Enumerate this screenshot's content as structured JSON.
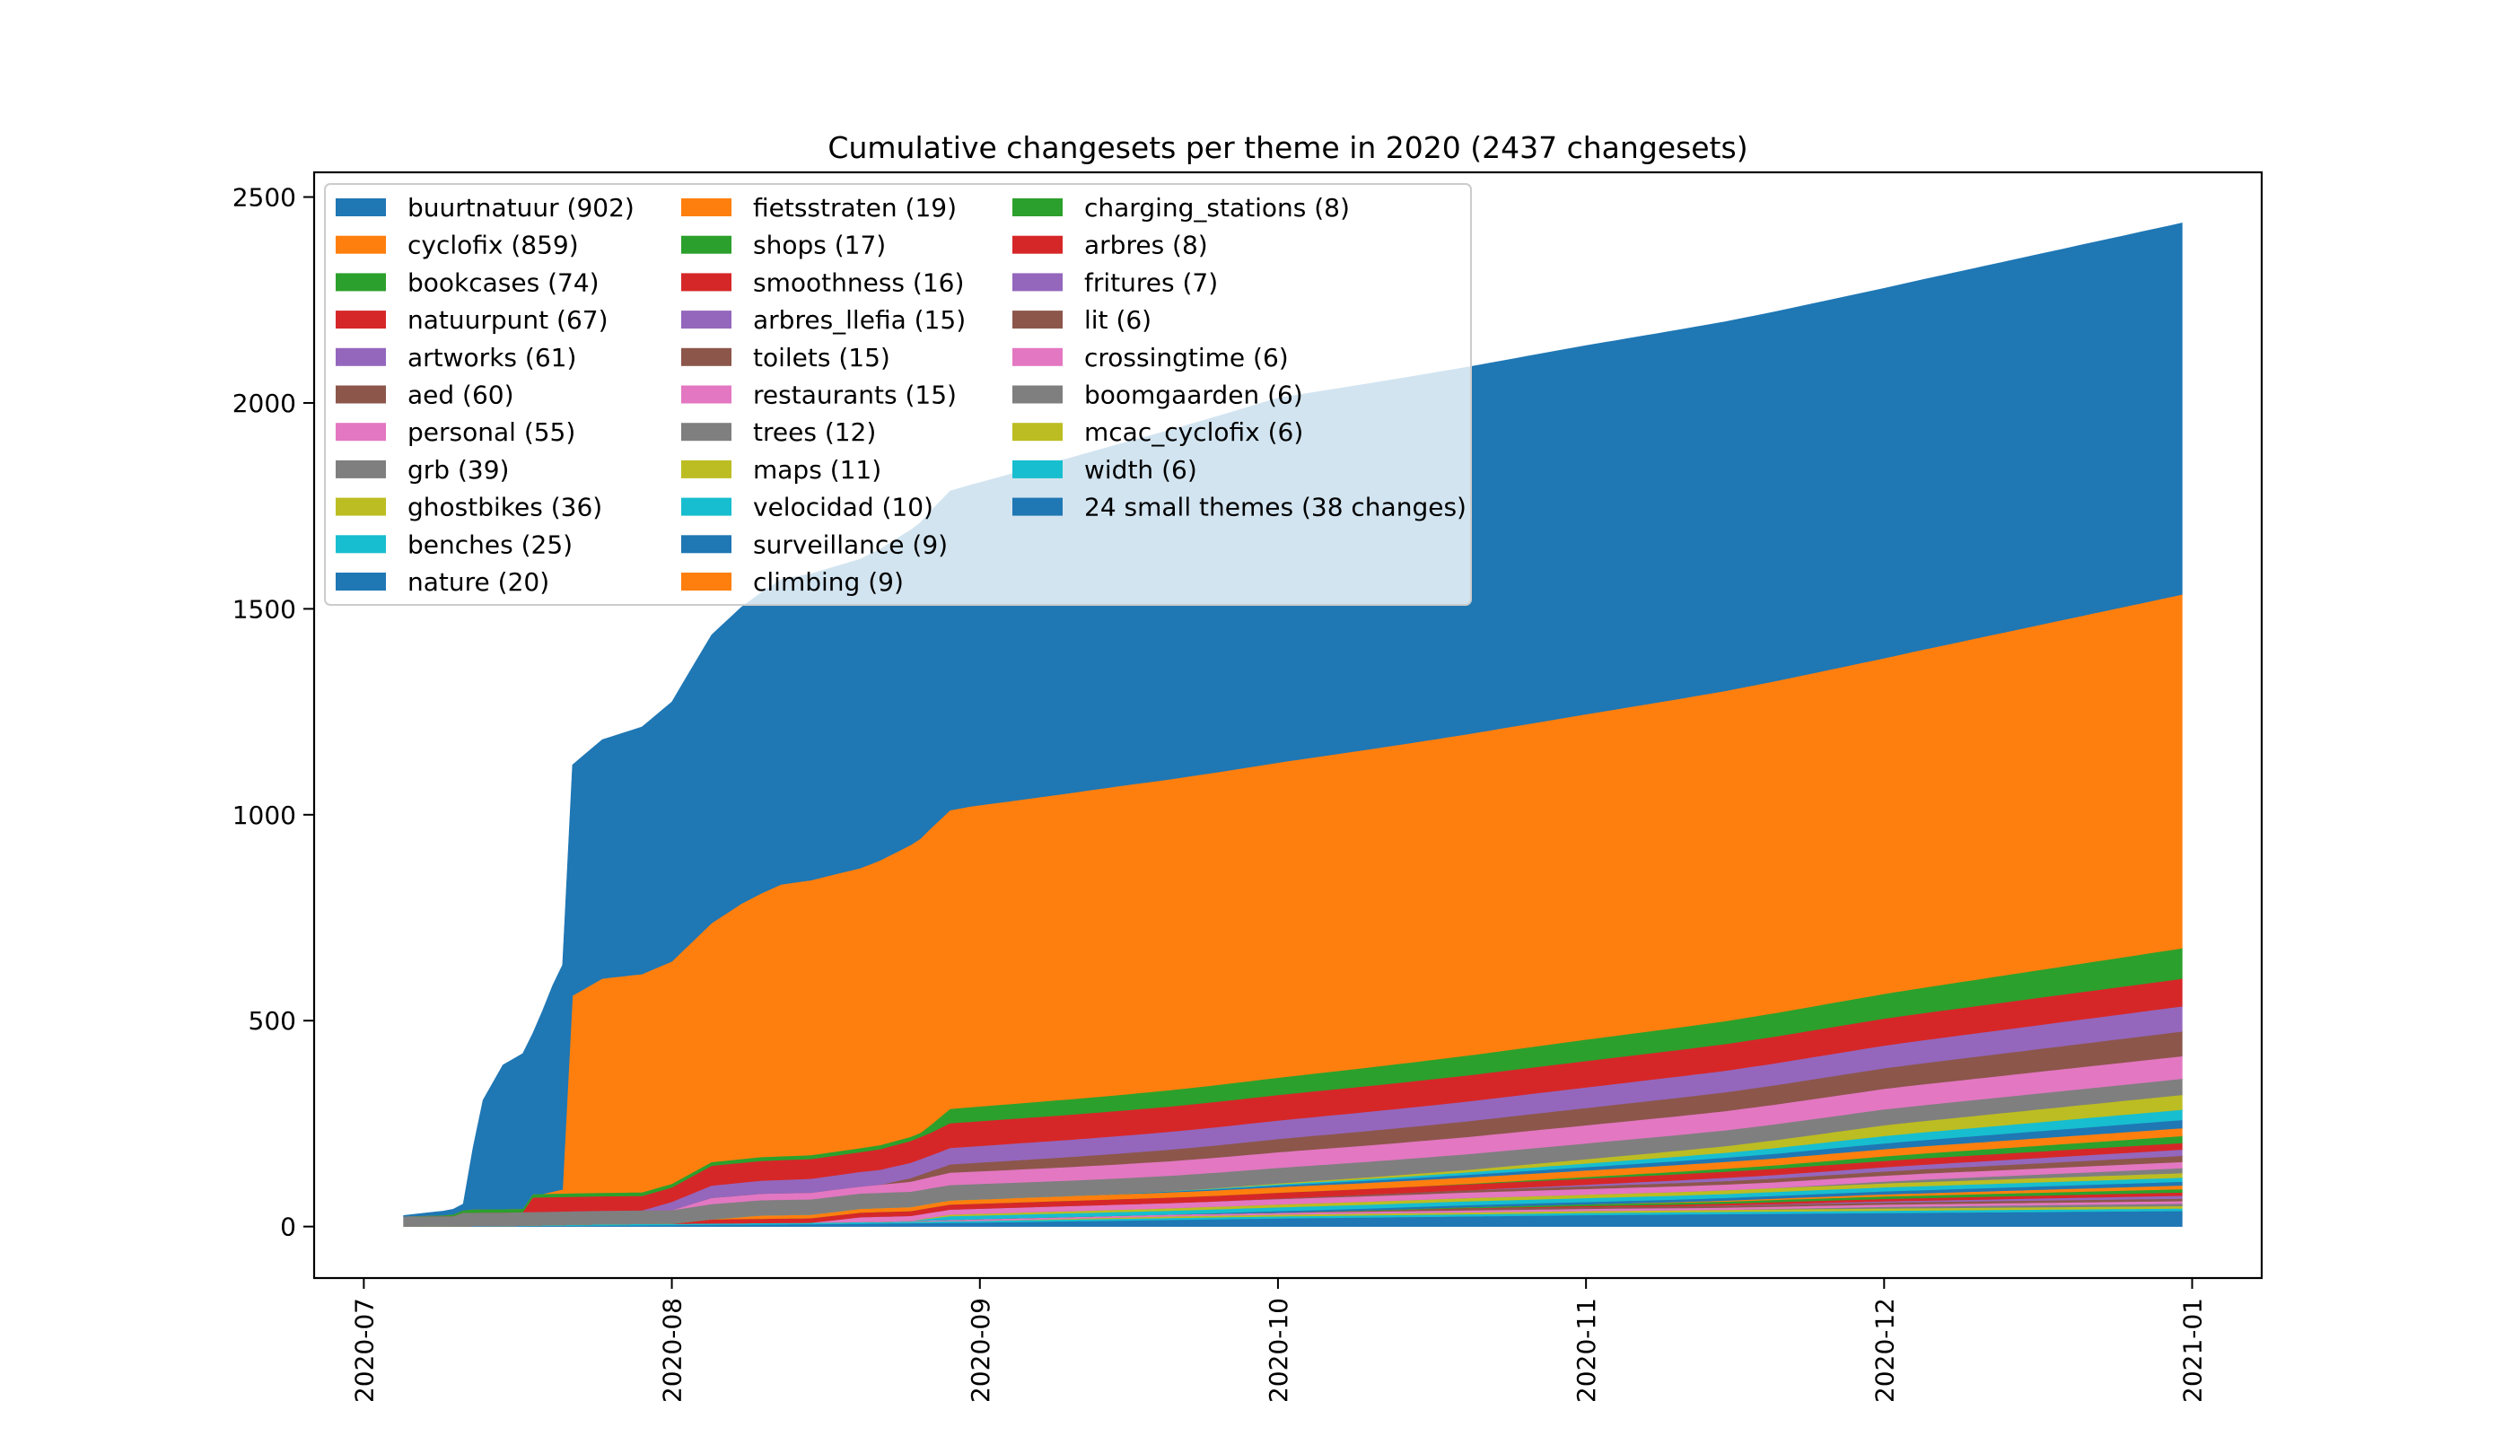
{
  "chart_data": {
    "type": "area",
    "stacked": true,
    "title": "Cumulative changesets per theme in 2020 (2437 changesets)",
    "xlabel": "",
    "ylabel": "",
    "x_range": [
      "2020-06-26",
      "2021-01-08"
    ],
    "ylim": [
      -125,
      2560
    ],
    "x_ticks": [
      "2020-07",
      "2020-08",
      "2020-09",
      "2020-10",
      "2020-11",
      "2020-12",
      "2021-01"
    ],
    "x_tick_dates": [
      "2020-07-01",
      "2020-08-01",
      "2020-09-01",
      "2020-10-01",
      "2020-11-01",
      "2020-12-01",
      "2021-01-01"
    ],
    "y_ticks": [
      0,
      500,
      1000,
      1500,
      2000,
      2500
    ],
    "grid": false,
    "legend_position": "top-left",
    "legend_columns": 3,
    "stack_order_note": "first series drawn on top; last series at the bottom",
    "series": [
      {
        "name": "buurtnatuur (902)",
        "color": "#1f77b4",
        "points": [
          [
            "2020-07-05",
            2
          ],
          [
            "2020-07-09",
            10
          ],
          [
            "2020-07-11",
            15
          ],
          [
            "2020-07-12",
            150
          ],
          [
            "2020-07-13",
            265
          ],
          [
            "2020-07-15",
            350
          ],
          [
            "2020-07-18",
            390
          ],
          [
            "2020-07-20",
            500
          ],
          [
            "2020-07-21",
            545
          ],
          [
            "2020-07-22",
            560
          ],
          [
            "2020-07-25",
            580
          ],
          [
            "2020-07-29",
            600
          ],
          [
            "2020-08-01",
            630
          ],
          [
            "2020-08-05",
            700
          ],
          [
            "2020-08-08",
            720
          ],
          [
            "2020-08-12",
            740
          ],
          [
            "2020-08-20",
            750
          ],
          [
            "2020-08-27",
            770
          ],
          [
            "2020-08-31",
            780
          ],
          [
            "2020-09-15",
            830
          ],
          [
            "2020-10-01",
            885
          ],
          [
            "2020-11-01",
            895
          ],
          [
            "2020-12-01",
            898
          ],
          [
            "2020-12-31",
            902
          ]
        ]
      },
      {
        "name": "cyclofix (859)",
        "color": "#ff7f0e",
        "points": [
          [
            "2020-07-05",
            0
          ],
          [
            "2020-07-19",
            0
          ],
          [
            "2020-07-21",
            10
          ],
          [
            "2020-07-22",
            480
          ],
          [
            "2020-07-25",
            520
          ],
          [
            "2020-07-29",
            530
          ],
          [
            "2020-08-01",
            540
          ],
          [
            "2020-08-05",
            580
          ],
          [
            "2020-08-08",
            620
          ],
          [
            "2020-08-12",
            660
          ],
          [
            "2020-08-20",
            680
          ],
          [
            "2020-08-27",
            720
          ],
          [
            "2020-08-31",
            730
          ],
          [
            "2020-09-15",
            750
          ],
          [
            "2020-10-01",
            765
          ],
          [
            "2020-11-01",
            790
          ],
          [
            "2020-12-01",
            815
          ],
          [
            "2020-12-31",
            859
          ]
        ]
      },
      {
        "name": "bookcases (74)",
        "color": "#2ca02c",
        "points": [
          [
            "2020-07-05",
            0
          ],
          [
            "2020-07-09",
            2
          ],
          [
            "2020-07-12",
            8
          ],
          [
            "2020-08-26",
            10
          ],
          [
            "2020-08-29",
            35
          ],
          [
            "2020-10-01",
            42
          ],
          [
            "2020-11-01",
            52
          ],
          [
            "2020-12-01",
            60
          ],
          [
            "2020-12-31",
            74
          ]
        ]
      },
      {
        "name": "natuurpunt (67)",
        "color": "#d62728",
        "points": [
          [
            "2020-07-05",
            0
          ],
          [
            "2020-07-17",
            0
          ],
          [
            "2020-07-18",
            35
          ],
          [
            "2020-08-01",
            35
          ],
          [
            "2020-08-05",
            48
          ],
          [
            "2020-08-20",
            48
          ],
          [
            "2020-08-27",
            55
          ],
          [
            "2020-08-29",
            60
          ],
          [
            "2020-10-01",
            62
          ],
          [
            "2020-11-01",
            64
          ],
          [
            "2020-12-31",
            67
          ]
        ]
      },
      {
        "name": "artworks (61)",
        "color": "#9467bd",
        "points": [
          [
            "2020-07-05",
            0
          ],
          [
            "2020-07-29",
            0
          ],
          [
            "2020-08-01",
            20
          ],
          [
            "2020-08-05",
            30
          ],
          [
            "2020-08-27",
            38
          ],
          [
            "2020-08-29",
            40
          ],
          [
            "2020-10-01",
            45
          ],
          [
            "2020-11-01",
            50
          ],
          [
            "2020-12-01",
            55
          ],
          [
            "2020-12-31",
            61
          ]
        ]
      },
      {
        "name": "aed (60)",
        "color": "#8c564b",
        "points": [
          [
            "2020-07-05",
            0
          ],
          [
            "2020-08-22",
            0
          ],
          [
            "2020-08-29",
            20
          ],
          [
            "2020-10-01",
            32
          ],
          [
            "2020-11-01",
            42
          ],
          [
            "2020-12-01",
            50
          ],
          [
            "2020-12-31",
            60
          ]
        ]
      },
      {
        "name": "personal (55)",
        "color": "#e377c2",
        "points": [
          [
            "2020-07-05",
            0
          ],
          [
            "2020-08-01",
            0
          ],
          [
            "2020-08-05",
            15
          ],
          [
            "2020-08-20",
            17
          ],
          [
            "2020-08-29",
            30
          ],
          [
            "2020-10-01",
            38
          ],
          [
            "2020-11-01",
            44
          ],
          [
            "2020-12-01",
            50
          ],
          [
            "2020-12-31",
            55
          ]
        ]
      },
      {
        "name": "grb (39)",
        "color": "#7f7f7f",
        "points": [
          [
            "2020-07-05",
            25
          ],
          [
            "2020-07-10",
            25
          ],
          [
            "2020-07-11",
            33
          ],
          [
            "2020-08-01",
            33
          ],
          [
            "2020-08-05",
            37
          ],
          [
            "2020-12-31",
            39
          ]
        ]
      },
      {
        "name": "ghostbikes (36)",
        "color": "#bcbd22",
        "points": [
          [
            "2020-07-05",
            0
          ],
          [
            "2020-09-20",
            0
          ],
          [
            "2020-10-20",
            6
          ],
          [
            "2020-11-15",
            16
          ],
          [
            "2020-12-01",
            26
          ],
          [
            "2020-12-31",
            36
          ]
        ]
      },
      {
        "name": "benches (25)",
        "color": "#17becf",
        "points": [
          [
            "2020-07-05",
            0
          ],
          [
            "2020-09-15",
            0
          ],
          [
            "2020-10-15",
            5
          ],
          [
            "2020-11-15",
            12
          ],
          [
            "2020-12-01",
            18
          ],
          [
            "2020-12-31",
            25
          ]
        ]
      },
      {
        "name": "nature (20)",
        "color": "#1f77b4",
        "points": [
          [
            "2020-07-05",
            0
          ],
          [
            "2020-09-10",
            0
          ],
          [
            "2020-10-01",
            4
          ],
          [
            "2020-11-15",
            10
          ],
          [
            "2020-12-01",
            14
          ],
          [
            "2020-12-31",
            20
          ]
        ]
      },
      {
        "name": "fietsstraten (19)",
        "color": "#ff7f0e",
        "points": [
          [
            "2020-07-05",
            0
          ],
          [
            "2020-08-05",
            0
          ],
          [
            "2020-08-10",
            8
          ],
          [
            "2020-09-15",
            12
          ],
          [
            "2020-10-15",
            15
          ],
          [
            "2020-12-31",
            19
          ]
        ]
      },
      {
        "name": "shops (17)",
        "color": "#2ca02c",
        "points": [
          [
            "2020-07-05",
            0
          ],
          [
            "2020-10-15",
            0
          ],
          [
            "2020-11-10",
            6
          ],
          [
            "2020-12-01",
            11
          ],
          [
            "2020-12-31",
            17
          ]
        ]
      },
      {
        "name": "smoothness (16)",
        "color": "#d62728",
        "points": [
          [
            "2020-07-05",
            0
          ],
          [
            "2020-08-01",
            0
          ],
          [
            "2020-08-05",
            10
          ],
          [
            "2020-08-27",
            12
          ],
          [
            "2020-10-01",
            14
          ],
          [
            "2020-12-31",
            16
          ]
        ]
      },
      {
        "name": "arbres_llefia (15)",
        "color": "#9467bd",
        "points": [
          [
            "2020-07-05",
            0
          ],
          [
            "2020-10-20",
            0
          ],
          [
            "2020-11-15",
            8
          ],
          [
            "2020-12-31",
            15
          ]
        ]
      },
      {
        "name": "toilets (15)",
        "color": "#8c564b",
        "points": [
          [
            "2020-07-05",
            0
          ],
          [
            "2020-09-25",
            0
          ],
          [
            "2020-10-15",
            5
          ],
          [
            "2020-12-01",
            10
          ],
          [
            "2020-12-31",
            15
          ]
        ]
      },
      {
        "name": "restaurants (15)",
        "color": "#e377c2",
        "points": [
          [
            "2020-07-05",
            0
          ],
          [
            "2020-08-15",
            0
          ],
          [
            "2020-08-20",
            12
          ],
          [
            "2020-10-01",
            13
          ],
          [
            "2020-12-31",
            15
          ]
        ]
      },
      {
        "name": "trees (12)",
        "color": "#7f7f7f",
        "points": [
          [
            "2020-07-05",
            0
          ],
          [
            "2020-11-20",
            0
          ],
          [
            "2020-12-05",
            6
          ],
          [
            "2020-12-31",
            12
          ]
        ]
      },
      {
        "name": "maps (11)",
        "color": "#bcbd22",
        "points": [
          [
            "2020-07-05",
            0
          ],
          [
            "2020-08-25",
            0
          ],
          [
            "2020-08-29",
            4
          ],
          [
            "2020-10-01",
            7
          ],
          [
            "2020-12-31",
            11
          ]
        ]
      },
      {
        "name": "velocidad (10)",
        "color": "#17becf",
        "points": [
          [
            "2020-07-05",
            0
          ],
          [
            "2020-08-25",
            0
          ],
          [
            "2020-08-29",
            9
          ],
          [
            "2020-12-31",
            10
          ]
        ]
      },
      {
        "name": "surveillance (9)",
        "color": "#1f77b4",
        "points": [
          [
            "2020-07-05",
            0
          ],
          [
            "2020-09-20",
            0
          ],
          [
            "2020-10-01",
            4
          ],
          [
            "2020-12-31",
            9
          ]
        ]
      },
      {
        "name": "climbing (9)",
        "color": "#ff7f0e",
        "points": [
          [
            "2020-07-05",
            0
          ],
          [
            "2020-11-01",
            0
          ],
          [
            "2020-12-01",
            5
          ],
          [
            "2020-12-31",
            9
          ]
        ]
      },
      {
        "name": "charging_stations (8)",
        "color": "#2ca02c",
        "points": [
          [
            "2020-07-05",
            0
          ],
          [
            "2020-10-01",
            0
          ],
          [
            "2020-11-01",
            4
          ],
          [
            "2020-12-31",
            8
          ]
        ]
      },
      {
        "name": "arbres (8)",
        "color": "#d62728",
        "points": [
          [
            "2020-07-05",
            0
          ],
          [
            "2020-10-10",
            0
          ],
          [
            "2020-11-20",
            5
          ],
          [
            "2020-12-31",
            8
          ]
        ]
      },
      {
        "name": "fritures (7)",
        "color": "#9467bd",
        "points": [
          [
            "2020-07-05",
            0
          ],
          [
            "2020-11-10",
            0
          ],
          [
            "2020-12-10",
            4
          ],
          [
            "2020-12-31",
            7
          ]
        ]
      },
      {
        "name": "lit (6)",
        "color": "#8c564b",
        "points": [
          [
            "2020-07-05",
            0
          ],
          [
            "2020-10-01",
            0
          ],
          [
            "2020-10-20",
            4
          ],
          [
            "2020-12-31",
            6
          ]
        ]
      },
      {
        "name": "crossingtime (6)",
        "color": "#e377c2",
        "points": [
          [
            "2020-07-05",
            0
          ],
          [
            "2020-08-20",
            0
          ],
          [
            "2020-09-01",
            4
          ],
          [
            "2020-12-31",
            6
          ]
        ]
      },
      {
        "name": "boomgaarden (6)",
        "color": "#7f7f7f",
        "points": [
          [
            "2020-07-05",
            0
          ],
          [
            "2020-11-15",
            0
          ],
          [
            "2020-12-01",
            4
          ],
          [
            "2020-12-31",
            6
          ]
        ]
      },
      {
        "name": "mcac_cyclofix (6)",
        "color": "#bcbd22",
        "points": [
          [
            "2020-07-05",
            0
          ],
          [
            "2020-09-01",
            0
          ],
          [
            "2020-09-20",
            4
          ],
          [
            "2020-12-31",
            6
          ]
        ]
      },
      {
        "name": "width (6)",
        "color": "#17becf",
        "points": [
          [
            "2020-07-05",
            0
          ],
          [
            "2020-07-15",
            0
          ],
          [
            "2020-07-25",
            3
          ],
          [
            "2020-10-01",
            5
          ],
          [
            "2020-12-31",
            6
          ]
        ]
      },
      {
        "name": "24 small themes (38 changes)",
        "color": "#1f77b4",
        "points": [
          [
            "2020-07-05",
            0
          ],
          [
            "2020-07-20",
            2
          ],
          [
            "2020-08-15",
            6
          ],
          [
            "2020-09-01",
            10
          ],
          [
            "2020-10-01",
            20
          ],
          [
            "2020-11-01",
            28
          ],
          [
            "2020-12-01",
            33
          ],
          [
            "2020-12-31",
            38
          ]
        ]
      }
    ]
  }
}
